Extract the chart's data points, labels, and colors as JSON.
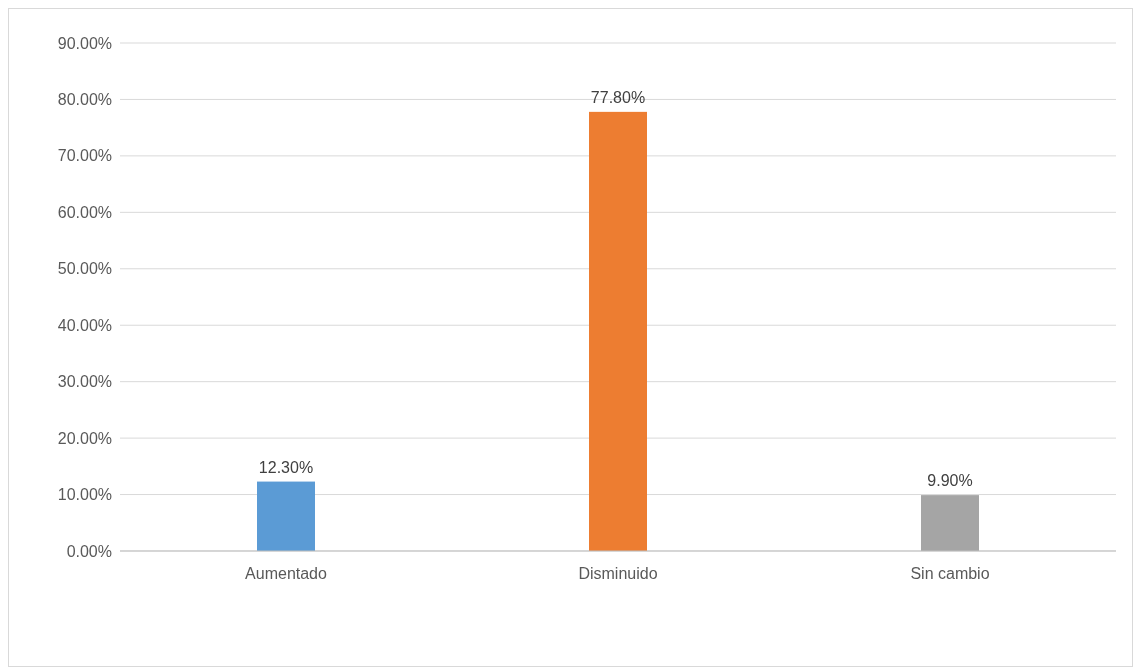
{
  "chart_data": {
    "type": "bar",
    "categories": [
      "Aumentado",
      "Disminuido",
      "Sin cambio"
    ],
    "values": [
      12.3,
      77.8,
      9.9
    ],
    "colors": [
      "#5b9bd5",
      "#ed7d31",
      "#a5a5a5"
    ],
    "value_labels": [
      "12.30%",
      "77.80%",
      "9.90%"
    ],
    "ylim": [
      0,
      90
    ],
    "yticks": [
      {
        "value": 0,
        "label": "0.00%"
      },
      {
        "value": 10,
        "label": "10.00%"
      },
      {
        "value": 20,
        "label": "20.00%"
      },
      {
        "value": 30,
        "label": "30.00%"
      },
      {
        "value": 40,
        "label": "40.00%"
      },
      {
        "value": 50,
        "label": "50.00%"
      },
      {
        "value": 60,
        "label": "60.00%"
      },
      {
        "value": 70,
        "label": "70.00%"
      },
      {
        "value": 80,
        "label": "80.00%"
      },
      {
        "value": 90,
        "label": "90.00%"
      }
    ],
    "grid": "y"
  }
}
